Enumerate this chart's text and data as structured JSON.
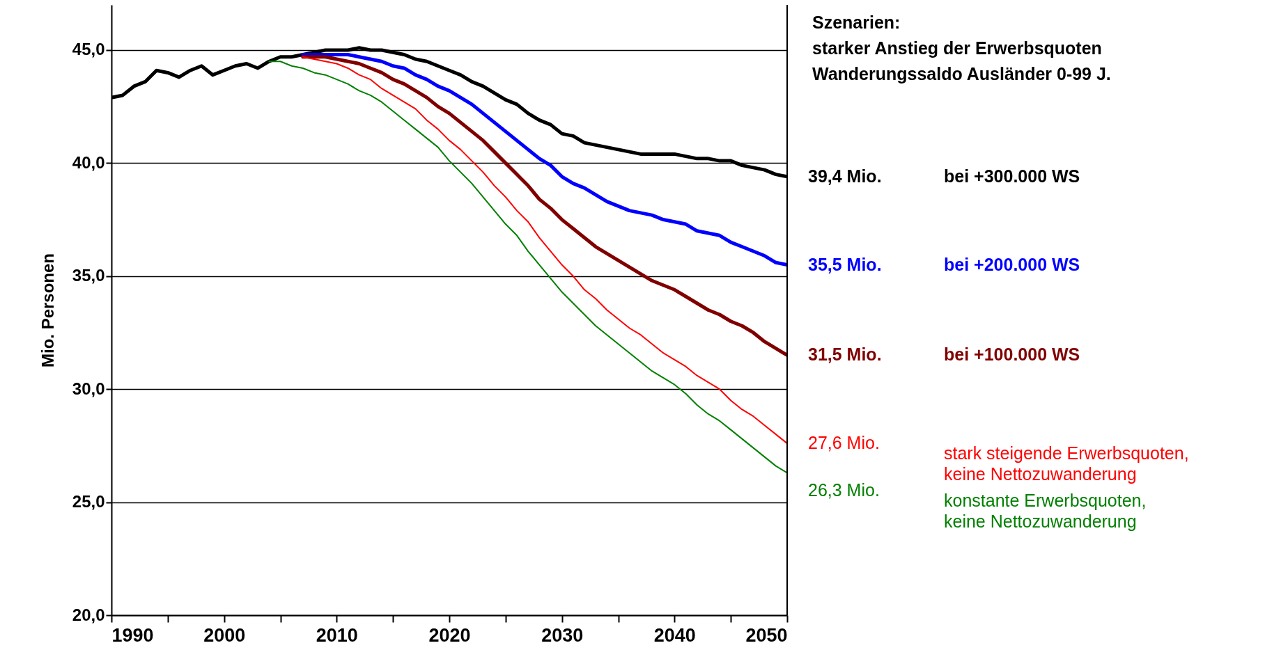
{
  "chart_data": {
    "type": "line",
    "title": "Szenarien:",
    "subtitle": "starker Anstieg der Erwerbsquoten\nWanderungssaldo Ausländer 0-99 J.",
    "ylabel": "Mio. Personen",
    "xlim": [
      1990,
      2050
    ],
    "ylim": [
      20,
      47
    ],
    "xticks": [
      1990,
      {
        "value": 1995,
        "label": null
      },
      2000,
      {
        "value": 2005,
        "label": null
      },
      2010,
      {
        "value": 2015,
        "label": null
      },
      2020,
      {
        "value": 2025,
        "label": null
      },
      2030,
      {
        "value": 2035,
        "label": null
      },
      2040,
      {
        "value": 2045,
        "label": null
      },
      2050
    ],
    "yticks": [
      {
        "value": 20,
        "label": "20,0"
      },
      {
        "value": 25,
        "label": "25,0"
      },
      {
        "value": 30,
        "label": "30,0"
      },
      {
        "value": 35,
        "label": "35,0"
      },
      {
        "value": 40,
        "label": "40,0"
      },
      {
        "value": 45,
        "label": "45,0"
      }
    ],
    "grid": "y",
    "legend": false,
    "marker": "none",
    "line_style": "solid",
    "series": [
      {
        "name": "bei +300.000 WS",
        "color": "#000000",
        "x": [
          1990,
          1991,
          1992,
          1993,
          1994,
          1995,
          1996,
          1997,
          1998,
          1999,
          2000,
          2001,
          2002,
          2003,
          2004,
          2005,
          2006,
          2007,
          2008,
          2009,
          2010,
          2011,
          2012,
          2013,
          2014,
          2015,
          2016,
          2017,
          2018,
          2019,
          2020,
          2021,
          2022,
          2023,
          2024,
          2025,
          2026,
          2027,
          2028,
          2029,
          2030,
          2031,
          2032,
          2033,
          2034,
          2035,
          2036,
          2037,
          2038,
          2039,
          2040,
          2041,
          2042,
          2043,
          2044,
          2045,
          2046,
          2047,
          2048,
          2049,
          2050
        ],
        "values": [
          42.9,
          43.0,
          43.4,
          43.6,
          44.1,
          44.0,
          43.8,
          44.1,
          44.3,
          43.9,
          44.1,
          44.3,
          44.4,
          44.2,
          44.5,
          44.7,
          44.7,
          44.8,
          44.9,
          45.0,
          45.0,
          45.0,
          45.1,
          45.0,
          45.0,
          44.9,
          44.8,
          44.6,
          44.5,
          44.3,
          44.1,
          43.9,
          43.6,
          43.4,
          43.1,
          42.8,
          42.6,
          42.2,
          41.9,
          41.7,
          41.3,
          41.2,
          40.9,
          40.8,
          40.7,
          40.6,
          40.5,
          40.4,
          40.4,
          40.4,
          40.4,
          40.3,
          40.2,
          40.2,
          40.1,
          40.1,
          39.9,
          39.8,
          39.7,
          39.5,
          39.4
        ]
      },
      {
        "name": "bei +200.000 WS",
        "color": "#0000ff",
        "x": [
          2007,
          2008,
          2009,
          2010,
          2011,
          2012,
          2013,
          2014,
          2015,
          2016,
          2017,
          2018,
          2019,
          2020,
          2021,
          2022,
          2023,
          2024,
          2025,
          2026,
          2027,
          2028,
          2029,
          2030,
          2031,
          2032,
          2033,
          2034,
          2035,
          2036,
          2037,
          2038,
          2039,
          2040,
          2041,
          2042,
          2043,
          2044,
          2045,
          2046,
          2047,
          2048,
          2049,
          2050
        ],
        "values": [
          44.8,
          44.8,
          44.8,
          44.8,
          44.8,
          44.7,
          44.6,
          44.5,
          44.3,
          44.2,
          43.9,
          43.7,
          43.4,
          43.2,
          42.9,
          42.6,
          42.2,
          41.8,
          41.4,
          41.0,
          40.6,
          40.2,
          39.9,
          39.4,
          39.1,
          38.9,
          38.6,
          38.3,
          38.1,
          37.9,
          37.8,
          37.7,
          37.5,
          37.4,
          37.3,
          37.0,
          36.9,
          36.8,
          36.5,
          36.3,
          36.1,
          35.9,
          35.6,
          35.5
        ]
      },
      {
        "name": "bei +100.000 WS",
        "color": "#800000",
        "x": [
          2007,
          2008,
          2009,
          2010,
          2011,
          2012,
          2013,
          2014,
          2015,
          2016,
          2017,
          2018,
          2019,
          2020,
          2021,
          2022,
          2023,
          2024,
          2025,
          2026,
          2027,
          2028,
          2029,
          2030,
          2031,
          2032,
          2033,
          2034,
          2035,
          2036,
          2037,
          2038,
          2039,
          2040,
          2041,
          2042,
          2043,
          2044,
          2045,
          2046,
          2047,
          2048,
          2049,
          2050
        ],
        "values": [
          44.7,
          44.7,
          44.7,
          44.6,
          44.5,
          44.4,
          44.2,
          44.0,
          43.7,
          43.5,
          43.2,
          42.9,
          42.5,
          42.2,
          41.8,
          41.4,
          41.0,
          40.5,
          40.0,
          39.5,
          39.0,
          38.4,
          38.0,
          37.5,
          37.1,
          36.7,
          36.3,
          36.0,
          35.7,
          35.4,
          35.1,
          34.8,
          34.6,
          34.4,
          34.1,
          33.8,
          33.5,
          33.3,
          33.0,
          32.8,
          32.5,
          32.1,
          31.8,
          31.5
        ]
      },
      {
        "name": "stark steigende Erwerbsquoten,\nkeine Nettozuwanderung",
        "color": "#ff0000",
        "x": [
          2007,
          2008,
          2009,
          2010,
          2011,
          2012,
          2013,
          2014,
          2015,
          2016,
          2017,
          2018,
          2019,
          2020,
          2021,
          2022,
          2023,
          2024,
          2025,
          2026,
          2027,
          2028,
          2029,
          2030,
          2031,
          2032,
          2033,
          2034,
          2035,
          2036,
          2037,
          2038,
          2039,
          2040,
          2041,
          2042,
          2043,
          2044,
          2045,
          2046,
          2047,
          2048,
          2049,
          2050
        ],
        "values": [
          44.7,
          44.6,
          44.5,
          44.4,
          44.2,
          43.9,
          43.7,
          43.3,
          43.0,
          42.7,
          42.4,
          41.9,
          41.5,
          41.0,
          40.6,
          40.1,
          39.6,
          39.0,
          38.5,
          37.9,
          37.4,
          36.7,
          36.1,
          35.5,
          35.0,
          34.4,
          34.0,
          33.5,
          33.1,
          32.7,
          32.4,
          32.0,
          31.6,
          31.3,
          31.0,
          30.6,
          30.3,
          30.0,
          29.5,
          29.1,
          28.8,
          28.4,
          28.0,
          27.6
        ]
      },
      {
        "name": "konstante Erwerbsquoten,\nkeine Nettozuwanderung",
        "color": "#008000",
        "x": [
          2004,
          2005,
          2006,
          2007,
          2008,
          2009,
          2010,
          2011,
          2012,
          2013,
          2014,
          2015,
          2016,
          2017,
          2018,
          2019,
          2020,
          2021,
          2022,
          2023,
          2024,
          2025,
          2026,
          2027,
          2028,
          2029,
          2030,
          2031,
          2032,
          2033,
          2034,
          2035,
          2036,
          2037,
          2038,
          2039,
          2040,
          2041,
          2042,
          2043,
          2044,
          2045,
          2046,
          2047,
          2048,
          2049,
          2050
        ],
        "values": [
          44.5,
          44.5,
          44.3,
          44.2,
          44.0,
          43.9,
          43.7,
          43.5,
          43.2,
          43.0,
          42.7,
          42.3,
          41.9,
          41.5,
          41.1,
          40.7,
          40.1,
          39.6,
          39.1,
          38.5,
          37.9,
          37.3,
          36.8,
          36.1,
          35.5,
          34.9,
          34.3,
          33.8,
          33.3,
          32.8,
          32.4,
          32.0,
          31.6,
          31.2,
          30.8,
          30.5,
          30.2,
          29.8,
          29.3,
          28.9,
          28.6,
          28.2,
          27.8,
          27.4,
          27.0,
          26.6,
          26.3
        ]
      }
    ],
    "annotations": [
      "39,4 Mio.",
      "35,5 Mio.",
      "31,5 Mio.",
      "27,6 Mio.",
      "26,3 Mio."
    ]
  }
}
